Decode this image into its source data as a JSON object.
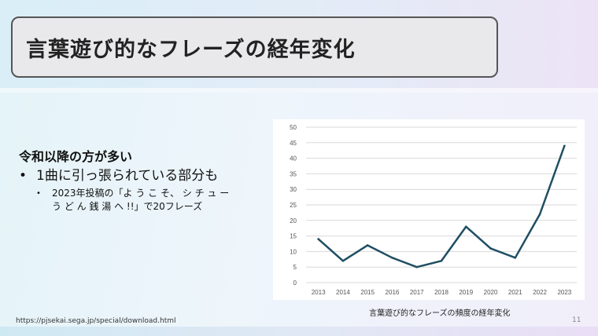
{
  "slide": {
    "title": "言葉遊び的なフレーズの経年変化",
    "heading": "令和以降の方が多い",
    "bullet1": "1曲に引っ張られている部分も",
    "bullet2": "2023年投稿の「よ う こ そ、 シ チ ュ ー う ど ん 銭 湯 へ !!」で20フレーズ",
    "chart_caption": "言葉遊び的なフレーズの頻度の経年変化",
    "url": "https://pjsekai.sega.jp/special/download.html",
    "page_number": "11"
  },
  "colors": {
    "line": "#1f4e63",
    "grid": "#d9d9d9",
    "axis_text": "#555555"
  },
  "chart_data": {
    "type": "line",
    "x": [
      "2013",
      "2014",
      "2015",
      "2016",
      "2017",
      "2018",
      "2019",
      "2020",
      "2021",
      "2022",
      "2023"
    ],
    "values": [
      14,
      7,
      12,
      8,
      5,
      7,
      18,
      11,
      8,
      22,
      44
    ],
    "yticks": [
      "0",
      "5",
      "10",
      "15",
      "20",
      "25",
      "30",
      "35",
      "40",
      "45",
      "50"
    ],
    "ylim": [
      0,
      50
    ],
    "grid": true,
    "legend": "none"
  }
}
